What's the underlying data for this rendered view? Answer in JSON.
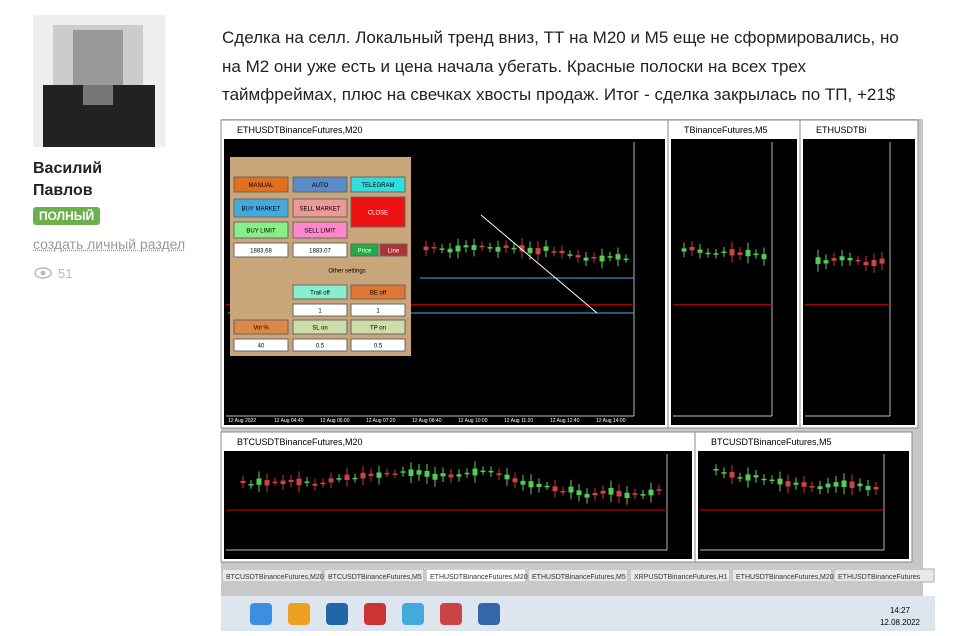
{
  "author": {
    "name": "Василий Павлов",
    "badge": "ПОЛНЫЙ",
    "link": "создать личный раздел",
    "views": "51"
  },
  "post": {
    "text": "Сделка на селл. Локальный тренд вниз, ТТ на М20 и М5 еще не сформировались, но на М2 они уже есть и цена начала убегать. Красные полоски на всех трех таймфреймах, плюс на свечках хвосты продаж. Итог - сделка закрылась по ТП, +21$"
  },
  "terminal": {
    "windows": [
      "ETHUSDTBinanceFutures,M20",
      "TBinanceFutures,M5",
      "ETHUSDTBi",
      "BTCUSDTBinanceFutures,M20",
      "BTCUSDTBinanceFutures,M5"
    ],
    "panel": [
      "MANUAL",
      "AUTO",
      "TELEGRAM",
      "BUY MARKET",
      "SELL MARKET",
      "CLOSE",
      "BUY LIMIT",
      "SELL LIMIT",
      "1883.68",
      "1883.07",
      "Price",
      "Line",
      "Other settings",
      "Trail off",
      "BE off",
      "1",
      "1",
      "Vol %",
      "SL on",
      "TP on",
      "40",
      "0.5",
      "0.5"
    ],
    "time_labels": [
      "12 Aug 2022",
      "12 Aug 04:40",
      "12 Aug 06:00",
      "12 Aug 07:20",
      "12 Aug 08:40",
      "12 Aug 10:00",
      "12 Aug 11:20",
      "12 Aug 12:40",
      "12 Aug 14:00"
    ],
    "tabs": [
      "BTCUSDTBinanceFutures,M20",
      "BTCUSDTBinanceFutures,M5",
      "ETHUSDTBinanceFutures,M20",
      "ETHUSDTBinanceFutures,M5",
      "XRPUSDTBinanceFutures,H1",
      "ETHUSDTBinanceFutures,M20",
      "ETHUSDTBinanceFutures"
    ],
    "clock": {
      "time": "14:27",
      "date": "12.08.2022"
    }
  }
}
